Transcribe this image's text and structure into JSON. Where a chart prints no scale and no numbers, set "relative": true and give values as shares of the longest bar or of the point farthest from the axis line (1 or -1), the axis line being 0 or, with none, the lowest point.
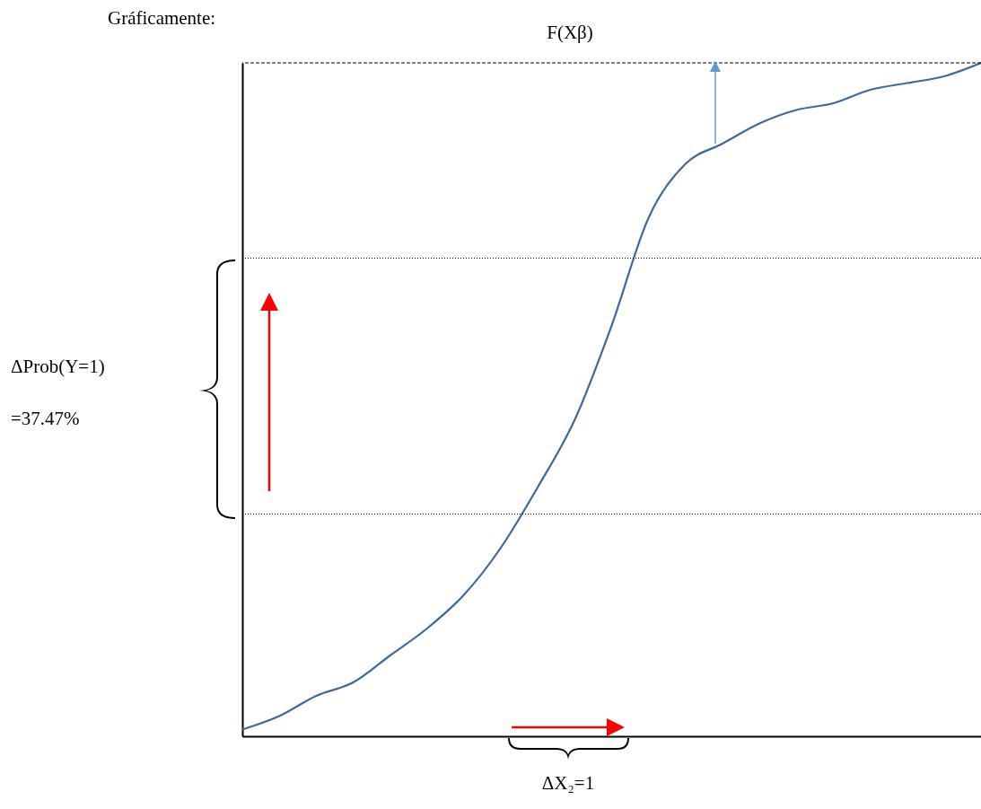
{
  "chart_data": {
    "type": "line",
    "title": "Gráficamente:",
    "relative": true,
    "categories": [
      null,
      null,
      null,
      null,
      null,
      null,
      null,
      null,
      null,
      null,
      null,
      null,
      null,
      null,
      null,
      null,
      null,
      null,
      null,
      null,
      null
    ],
    "series": [
      {
        "color": "#3e6a9a",
        "values": [
          0.01,
          0.03,
          0.06,
          0.08,
          0.12,
          0.16,
          0.21,
          0.28,
          0.37,
          0.47,
          0.61,
          0.77,
          0.85,
          0.88,
          0.91,
          0.93,
          0.94,
          0.96,
          0.97,
          0.98,
          1.0
        ]
      }
    ],
    "ref_lines": [
      {
        "axis": "y",
        "value": 1.0,
        "color": "#000000",
        "line_style": "dashed"
      },
      {
        "axis": "y",
        "value": 0.71,
        "color": "#000000",
        "line_style": "dotted"
      },
      {
        "axis": "y",
        "value": 0.33,
        "color": "#000000",
        "line_style": "dotted"
      }
    ],
    "annotations": [
      "F(Xβ)",
      "ΔProb(Y=1)",
      "=37.47%",
      "ΔX₂=1"
    ]
  }
}
